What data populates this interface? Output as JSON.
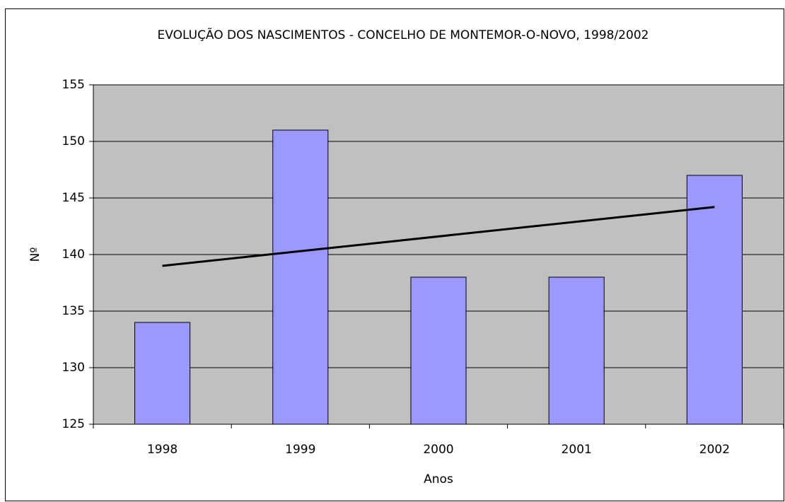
{
  "chart_data": {
    "type": "bar",
    "title": "EVOLUÇÃO DOS NASCIMENTOS - CONCELHO DE MONTEMOR-O-NOVO, 1998/2002",
    "x_label": "Anos",
    "y_label": "Nº",
    "categories": [
      "1998",
      "1999",
      "2000",
      "2001",
      "2002"
    ],
    "values": [
      134,
      151,
      138,
      138,
      147
    ],
    "color": "#9999ff",
    "ylim": [
      125,
      155
    ],
    "yticks": [
      125,
      130,
      135,
      140,
      145,
      150,
      155
    ],
    "grid": true,
    "background": "#c0c0c0",
    "trendline": {
      "type": "linear",
      "color": "#000000"
    }
  }
}
